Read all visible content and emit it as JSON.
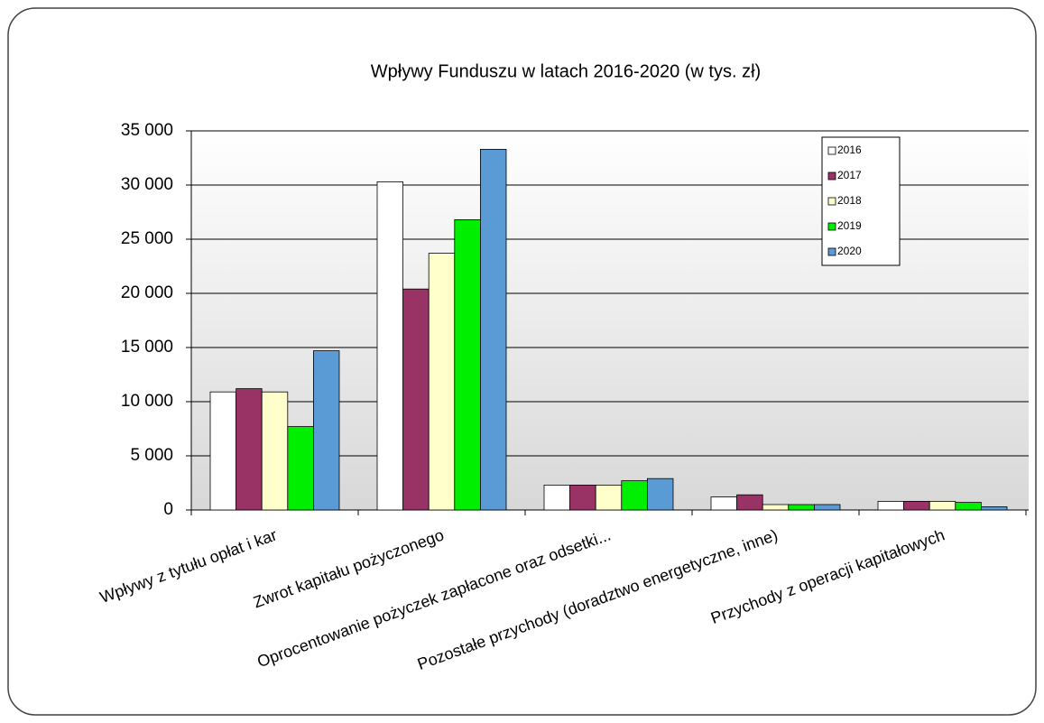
{
  "chart_data": {
    "type": "bar",
    "title": "Wpływy Funduszu w latach 2016-2020 (w tys. zł)",
    "categories": [
      "Wpływy z tytułu opłat i kar",
      "Zwrot kapitału pożyczonego",
      "Oprocentowanie pożyczek  zapłacone oraz odsetki...",
      "Pozostałe przychody  (doradztwo energetyczne, inne)",
      "Przychody z operacji kapitałowych"
    ],
    "series": [
      {
        "name": "2016",
        "color": "#ffffff",
        "values": [
          10900,
          30300,
          2300,
          1200,
          800
        ]
      },
      {
        "name": "2017",
        "color": "#993366",
        "values": [
          11200,
          20400,
          2300,
          1400,
          800
        ]
      },
      {
        "name": "2018",
        "color": "#ffffcc",
        "values": [
          10900,
          23700,
          2300,
          500,
          800
        ]
      },
      {
        "name": "2019",
        "color": "#00ee00",
        "values": [
          7700,
          26800,
          2700,
          500,
          700
        ]
      },
      {
        "name": "2020",
        "color": "#5b9bd5",
        "values": [
          14700,
          33300,
          2900,
          500,
          300
        ]
      }
    ],
    "ylim": [
      0,
      35000
    ],
    "yticks": [
      0,
      {
        "value": 5000,
        "label": "5 000"
      },
      {
        "value": 10000,
        "label": "10 000"
      },
      {
        "value": 15000,
        "label": "15 000"
      },
      {
        "value": 20000,
        "label": "20 000"
      },
      {
        "value": 25000,
        "label": "25 000"
      },
      {
        "value": 30000,
        "label": "30 000"
      },
      {
        "value": 35000,
        "label": "35 000"
      }
    ],
    "grid": true,
    "legend": "upper-right"
  }
}
